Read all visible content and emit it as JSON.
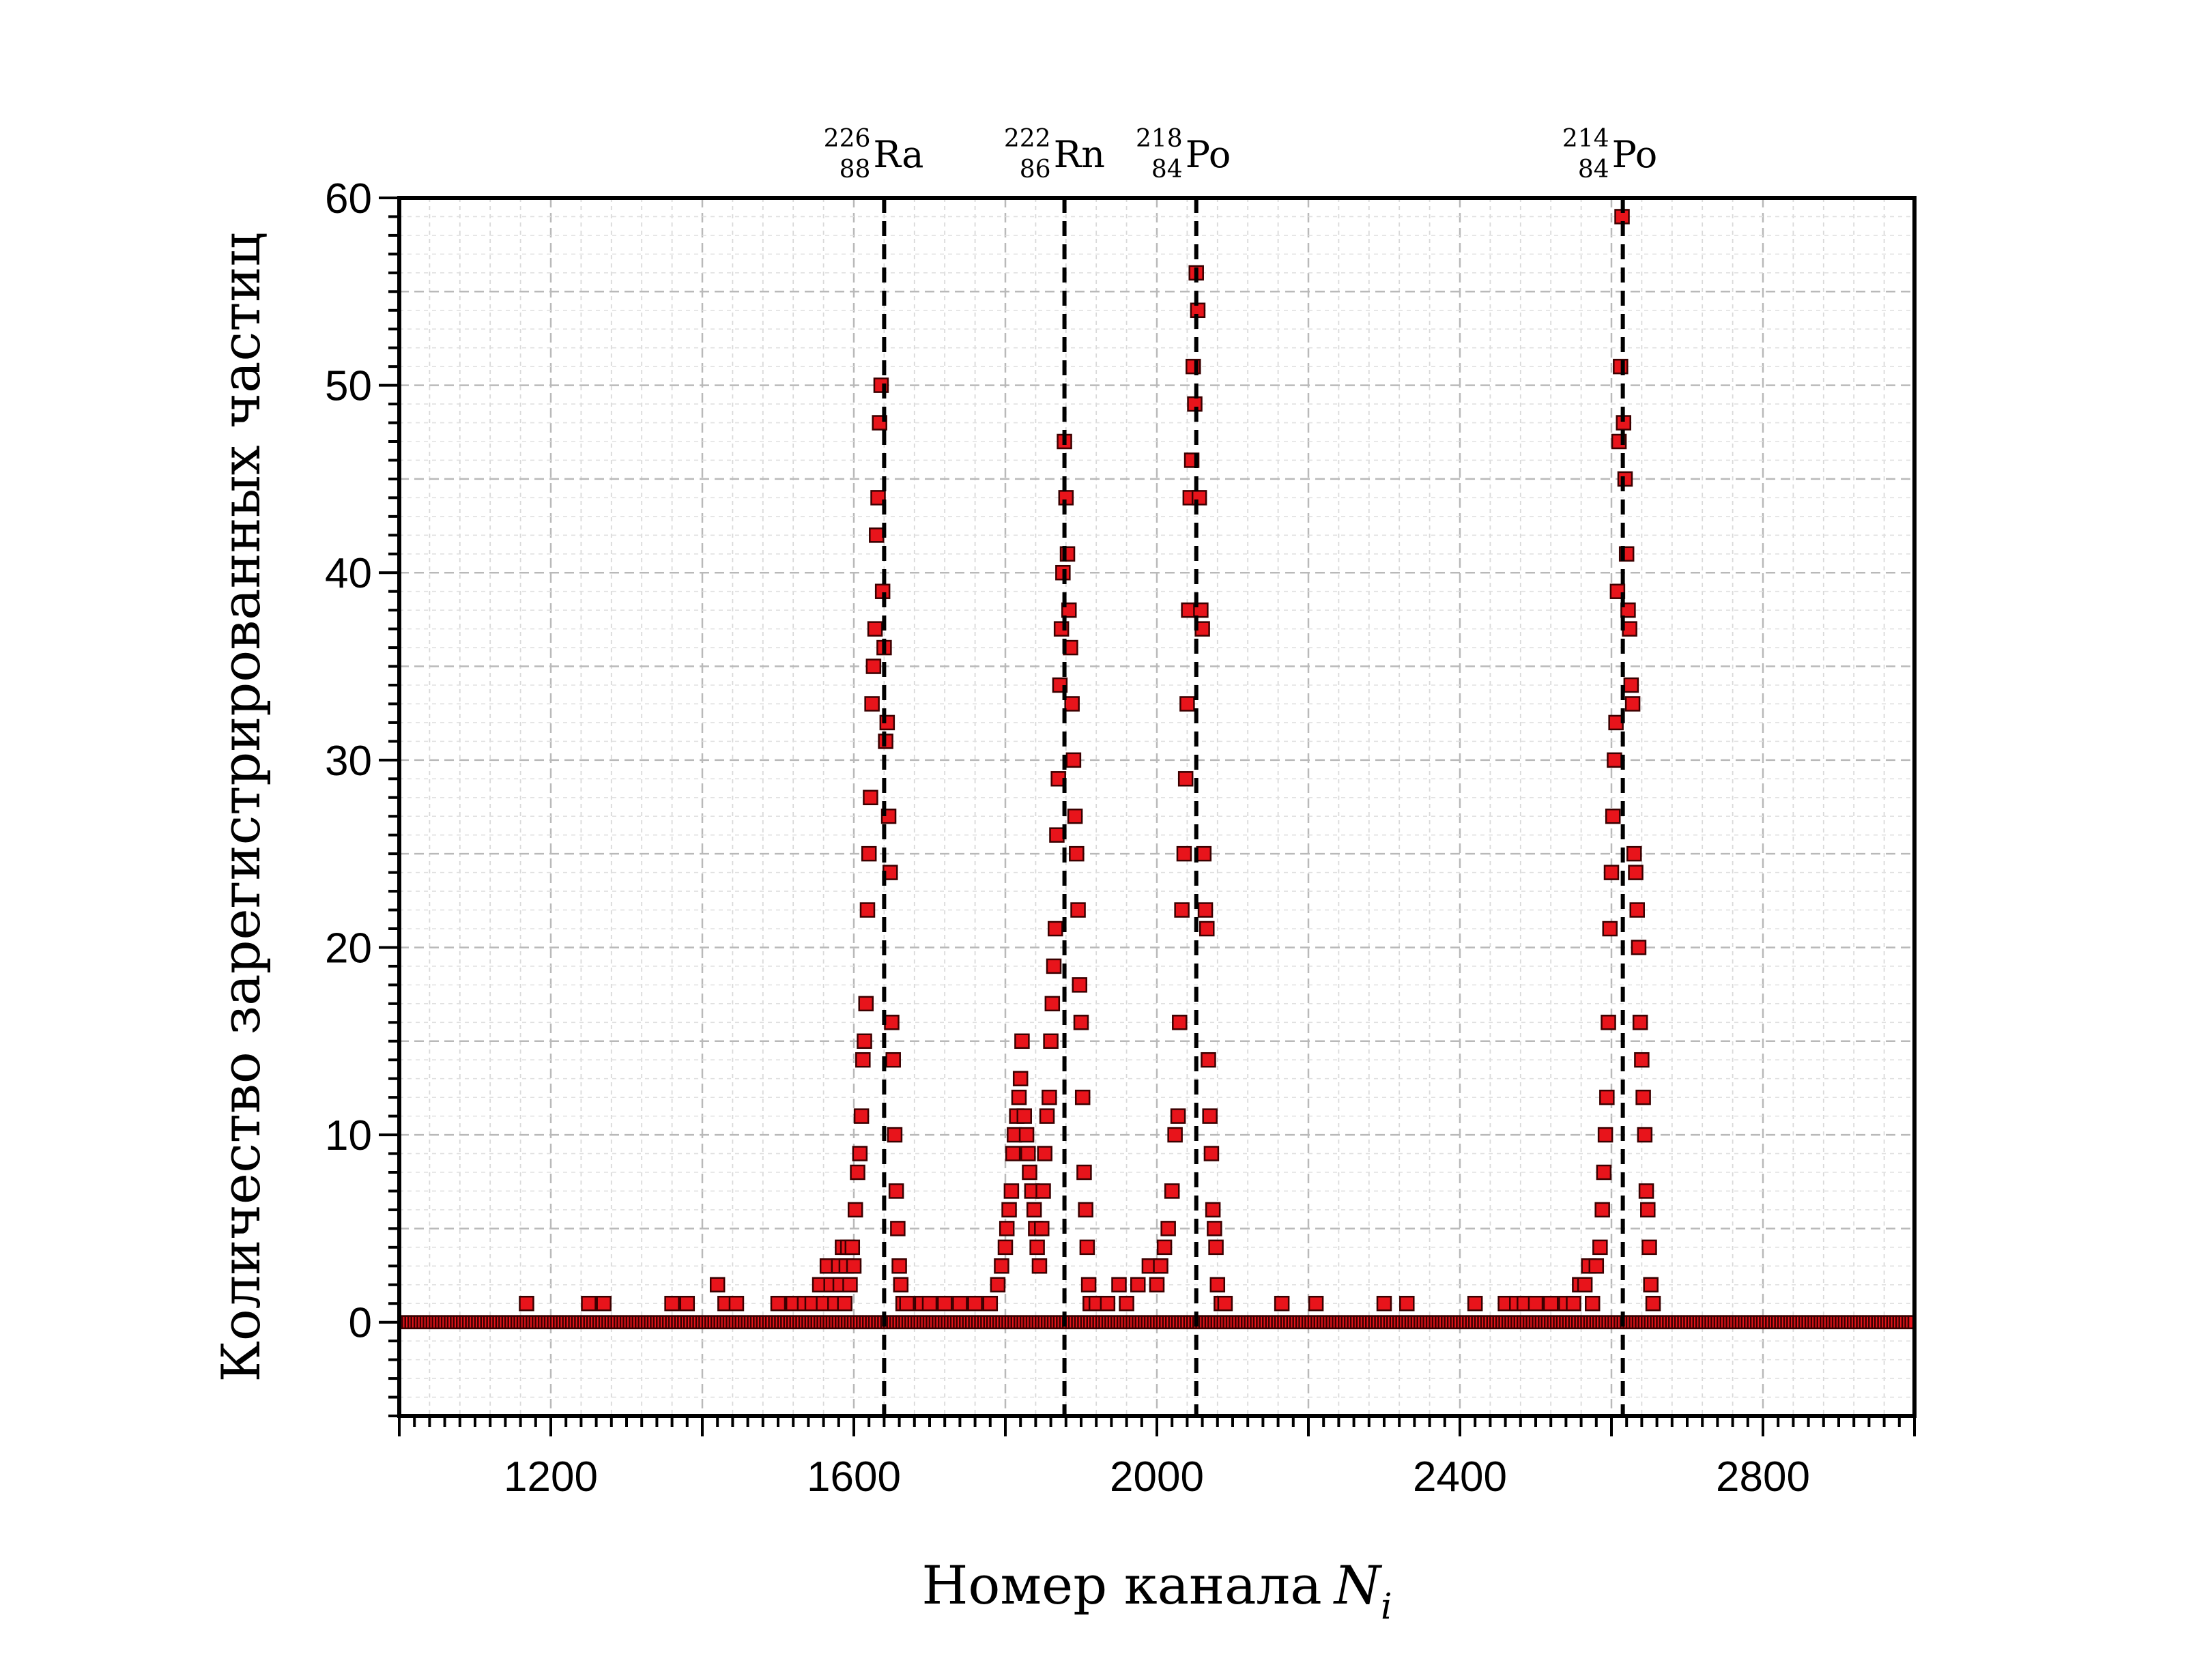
{
  "chart_data": {
    "type": "scatter",
    "title": "",
    "xlabel": "Номер канала",
    "xlabel_var": "N",
    "xlabel_sub": "i",
    "ylabel": "Количество зарегистрированных частиц",
    "xlim": [
      1000,
      3000
    ],
    "ylim": [
      -5,
      60
    ],
    "x_ticks": [
      1200,
      1600,
      2000,
      2400,
      2800
    ],
    "x_tick_labels": [
      "1200",
      "1600",
      "2000",
      "2400",
      "2800"
    ],
    "y_ticks": [
      0,
      10,
      20,
      30,
      40,
      50,
      60
    ],
    "y_tick_labels": [
      "0",
      "10",
      "20",
      "30",
      "40",
      "50",
      "60"
    ],
    "grid": true,
    "marker_color": "#e8141b",
    "marker_edge": "#3a0000",
    "peak_lines": [
      {
        "x": 1640,
        "symbol": "Ra",
        "mass": "226",
        "z": "88"
      },
      {
        "x": 1878,
        "symbol": "Rn",
        "mass": "222",
        "z": "86"
      },
      {
        "x": 2052,
        "symbol": "Po",
        "mass": "218",
        "z": "84"
      },
      {
        "x": 2615,
        "symbol": "Po",
        "mass": "214",
        "z": "84"
      }
    ],
    "baseline": {
      "x_from": 1000,
      "x_to": 3000,
      "y": 0
    },
    "series": [
      {
        "points": [
          [
            1168,
            1
          ],
          [
            1250,
            1
          ],
          [
            1270,
            1
          ],
          [
            1360,
            1
          ],
          [
            1380,
            1
          ],
          [
            1420,
            2
          ],
          [
            1430,
            1
          ],
          [
            1445,
            1
          ],
          [
            1500,
            1
          ],
          [
            1520,
            1
          ],
          [
            1535,
            1
          ],
          [
            1545,
            1
          ],
          [
            1555,
            2
          ],
          [
            1560,
            1
          ],
          [
            1565,
            3
          ],
          [
            1570,
            2
          ],
          [
            1575,
            1
          ],
          [
            1580,
            3
          ],
          [
            1582,
            2
          ],
          [
            1585,
            4
          ],
          [
            1588,
            1
          ],
          [
            1590,
            3
          ],
          [
            1592,
            4
          ],
          [
            1595,
            2
          ],
          [
            1598,
            4
          ],
          [
            1600,
            3
          ],
          [
            1602,
            6
          ],
          [
            1605,
            8
          ],
          [
            1608,
            9
          ],
          [
            1610,
            11
          ],
          [
            1612,
            14
          ],
          [
            1614,
            15
          ],
          [
            1616,
            17
          ],
          [
            1618,
            22
          ],
          [
            1620,
            25
          ],
          [
            1622,
            28
          ],
          [
            1624,
            33
          ],
          [
            1626,
            35
          ],
          [
            1628,
            37
          ],
          [
            1630,
            42
          ],
          [
            1632,
            44
          ],
          [
            1634,
            48
          ],
          [
            1636,
            50
          ],
          [
            1638,
            39
          ],
          [
            1640,
            36
          ],
          [
            1642,
            31
          ],
          [
            1644,
            32
          ],
          [
            1646,
            27
          ],
          [
            1648,
            24
          ],
          [
            1650,
            16
          ],
          [
            1652,
            14
          ],
          [
            1654,
            10
          ],
          [
            1656,
            7
          ],
          [
            1658,
            5
          ],
          [
            1660,
            3
          ],
          [
            1662,
            2
          ],
          [
            1665,
            1
          ],
          [
            1670,
            1
          ],
          [
            1690,
            1
          ],
          [
            1700,
            1
          ],
          [
            1720,
            1
          ],
          [
            1740,
            1
          ],
          [
            1760,
            1
          ],
          [
            1780,
            1
          ],
          [
            1790,
            2
          ],
          [
            1795,
            3
          ],
          [
            1800,
            4
          ],
          [
            1802,
            5
          ],
          [
            1805,
            6
          ],
          [
            1808,
            7
          ],
          [
            1810,
            9
          ],
          [
            1812,
            10
          ],
          [
            1815,
            11
          ],
          [
            1818,
            12
          ],
          [
            1820,
            13
          ],
          [
            1822,
            15
          ],
          [
            1825,
            11
          ],
          [
            1828,
            10
          ],
          [
            1830,
            9
          ],
          [
            1832,
            8
          ],
          [
            1835,
            7
          ],
          [
            1838,
            6
          ],
          [
            1840,
            5
          ],
          [
            1842,
            4
          ],
          [
            1845,
            3
          ],
          [
            1848,
            5
          ],
          [
            1850,
            7
          ],
          [
            1852,
            9
          ],
          [
            1855,
            11
          ],
          [
            1858,
            12
          ],
          [
            1860,
            15
          ],
          [
            1862,
            17
          ],
          [
            1864,
            19
          ],
          [
            1866,
            21
          ],
          [
            1868,
            26
          ],
          [
            1870,
            29
          ],
          [
            1872,
            34
          ],
          [
            1874,
            37
          ],
          [
            1876,
            40
          ],
          [
            1878,
            47
          ],
          [
            1880,
            44
          ],
          [
            1882,
            41
          ],
          [
            1884,
            38
          ],
          [
            1886,
            36
          ],
          [
            1888,
            33
          ],
          [
            1890,
            30
          ],
          [
            1892,
            27
          ],
          [
            1894,
            25
          ],
          [
            1896,
            22
          ],
          [
            1898,
            18
          ],
          [
            1900,
            16
          ],
          [
            1902,
            12
          ],
          [
            1904,
            8
          ],
          [
            1906,
            6
          ],
          [
            1908,
            4
          ],
          [
            1910,
            2
          ],
          [
            1912,
            1
          ],
          [
            1920,
            1
          ],
          [
            1935,
            1
          ],
          [
            1950,
            2
          ],
          [
            1960,
            1
          ],
          [
            1975,
            2
          ],
          [
            1990,
            3
          ],
          [
            2000,
            2
          ],
          [
            2005,
            3
          ],
          [
            2010,
            4
          ],
          [
            2015,
            5
          ],
          [
            2020,
            7
          ],
          [
            2024,
            10
          ],
          [
            2028,
            11
          ],
          [
            2030,
            16
          ],
          [
            2033,
            22
          ],
          [
            2036,
            25
          ],
          [
            2038,
            29
          ],
          [
            2040,
            33
          ],
          [
            2042,
            38
          ],
          [
            2044,
            44
          ],
          [
            2046,
            46
          ],
          [
            2048,
            51
          ],
          [
            2050,
            49
          ],
          [
            2052,
            56
          ],
          [
            2054,
            54
          ],
          [
            2056,
            44
          ],
          [
            2058,
            38
          ],
          [
            2060,
            37
          ],
          [
            2062,
            25
          ],
          [
            2064,
            22
          ],
          [
            2066,
            21
          ],
          [
            2068,
            14
          ],
          [
            2070,
            11
          ],
          [
            2072,
            9
          ],
          [
            2074,
            6
          ],
          [
            2076,
            5
          ],
          [
            2078,
            4
          ],
          [
            2080,
            2
          ],
          [
            2085,
            1
          ],
          [
            2090,
            1
          ],
          [
            2165,
            1
          ],
          [
            2210,
            1
          ],
          [
            2300,
            1
          ],
          [
            2330,
            1
          ],
          [
            2420,
            1
          ],
          [
            2460,
            1
          ],
          [
            2475,
            1
          ],
          [
            2485,
            1
          ],
          [
            2500,
            1
          ],
          [
            2520,
            1
          ],
          [
            2540,
            1
          ],
          [
            2550,
            1
          ],
          [
            2558,
            2
          ],
          [
            2565,
            2
          ],
          [
            2570,
            3
          ],
          [
            2575,
            1
          ],
          [
            2580,
            3
          ],
          [
            2585,
            4
          ],
          [
            2588,
            6
          ],
          [
            2590,
            8
          ],
          [
            2592,
            10
          ],
          [
            2594,
            12
          ],
          [
            2596,
            16
          ],
          [
            2598,
            21
          ],
          [
            2600,
            24
          ],
          [
            2602,
            27
          ],
          [
            2604,
            30
          ],
          [
            2606,
            32
          ],
          [
            2608,
            39
          ],
          [
            2610,
            47
          ],
          [
            2612,
            51
          ],
          [
            2614,
            59
          ],
          [
            2616,
            48
          ],
          [
            2618,
            45
          ],
          [
            2620,
            41
          ],
          [
            2622,
            38
          ],
          [
            2624,
            37
          ],
          [
            2626,
            34
          ],
          [
            2628,
            33
          ],
          [
            2630,
            25
          ],
          [
            2632,
            24
          ],
          [
            2634,
            22
          ],
          [
            2636,
            20
          ],
          [
            2638,
            16
          ],
          [
            2640,
            14
          ],
          [
            2642,
            12
          ],
          [
            2644,
            10
          ],
          [
            2646,
            7
          ],
          [
            2648,
            6
          ],
          [
            2650,
            4
          ],
          [
            2652,
            2
          ],
          [
            2655,
            1
          ]
        ]
      }
    ]
  }
}
